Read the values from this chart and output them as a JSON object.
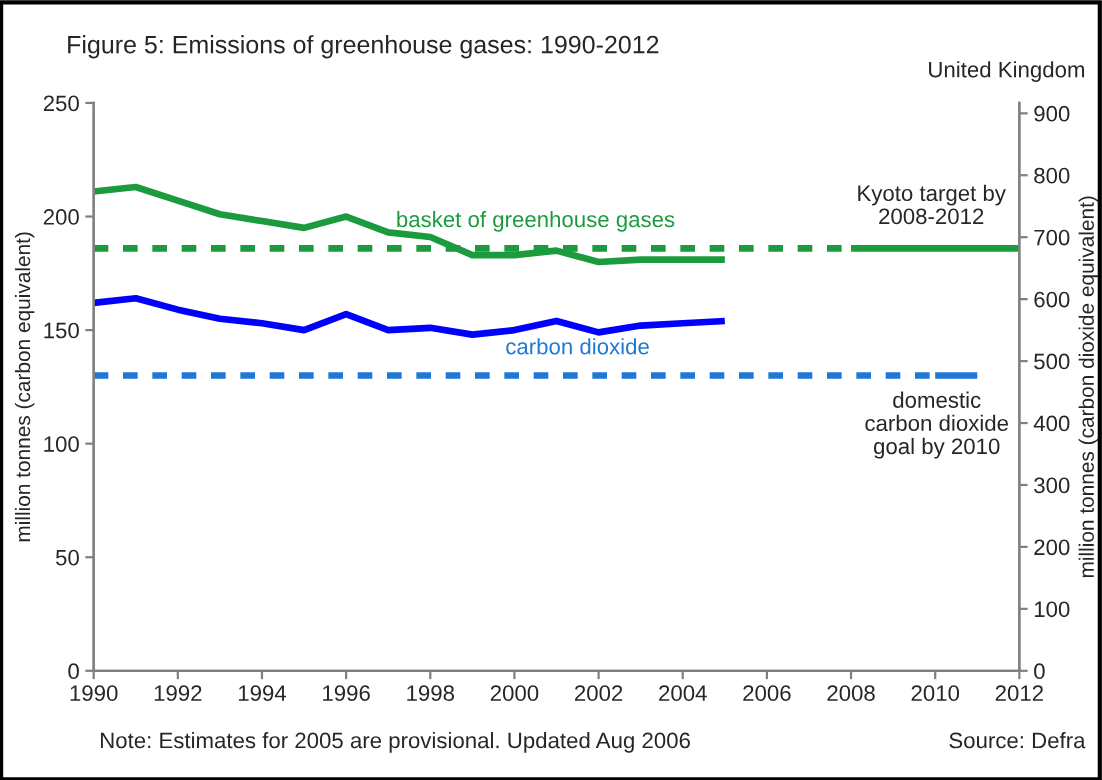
{
  "chart_data": {
    "type": "line",
    "title": "Figure 5: Emissions of greenhouse gases: 1990-2012",
    "ylabel": "million tonnes (carbon equivalent)",
    "y2label": "million tonnes (carbon dioxide equivalent)",
    "xlim": [
      1990,
      2012
    ],
    "xticks": [
      1990,
      1992,
      1994,
      1996,
      1998,
      2000,
      2002,
      2004,
      2006,
      2008,
      2010,
      2012
    ],
    "ylim": [
      0,
      250
    ],
    "yticks": [
      0,
      50,
      100,
      150,
      200,
      250
    ],
    "y2lim": [
      0,
      916.7
    ],
    "y2ticks": [
      0,
      100,
      200,
      300,
      400,
      500,
      600,
      700,
      800,
      900
    ],
    "grid": false,
    "legend": false,
    "series": [
      {
        "color": "#1b9a3e",
        "x": [
          1990,
          1991,
          1992,
          1993,
          1994,
          1995,
          1996,
          1997,
          1998,
          1999,
          2000,
          2001,
          2002,
          2003,
          2004,
          2005
        ],
        "values": [
          211,
          213,
          207,
          201,
          198,
          195,
          200,
          193,
          191,
          183,
          183,
          185,
          180,
          181,
          181,
          181
        ]
      },
      {
        "color": "#0000ff",
        "x": [
          1990,
          1991,
          1992,
          1993,
          1994,
          1995,
          1996,
          1997,
          1998,
          1999,
          2000,
          2001,
          2002,
          2003,
          2004,
          2005
        ],
        "values": [
          162,
          164,
          159,
          155,
          153,
          150,
          157,
          150,
          151,
          148,
          150,
          154,
          149,
          152,
          153,
          154
        ]
      },
      {
        "name": "basket of greenhouse gases",
        "color": "#1b9a3e",
        "line_style": "dashed",
        "x": [
          1990,
          2008
        ],
        "values": [
          186,
          186
        ]
      },
      {
        "color": "#1b9a3e",
        "x": [
          2008,
          2012
        ],
        "values": [
          186,
          186
        ]
      },
      {
        "name": "carbon dioxide",
        "color": "#1f78d6",
        "line_style": "dashed",
        "x": [
          1990,
          2010
        ],
        "values": [
          130,
          130
        ]
      },
      {
        "color": "#1f78d6",
        "x": [
          2010,
          2011
        ],
        "values": [
          130,
          130
        ]
      }
    ],
    "annotations": [
      "United Kingdom",
      "Note: Estimates for 2005 are provisional. Updated Aug 2006",
      "Source: Defra",
      "Kyoto target by\n2008-2012",
      "domestic\ncarbon dioxide\ngoal by 2010"
    ]
  }
}
